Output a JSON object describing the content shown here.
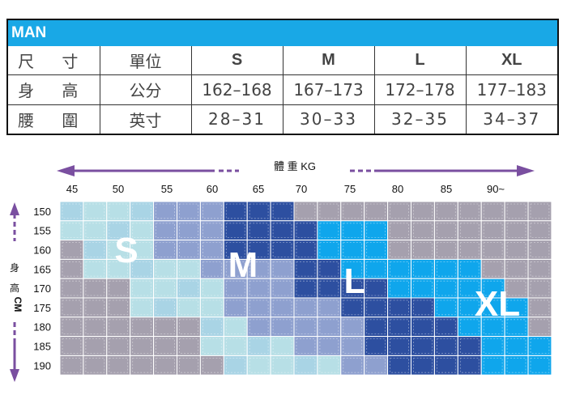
{
  "size_table": {
    "title": "MAN",
    "columns": [
      "尺 寸",
      "單位",
      "S",
      "M",
      "L",
      "XL"
    ],
    "rows": [
      {
        "label": "身 高",
        "unit": "公分",
        "values": [
          "162–168",
          "167–173",
          "172–178",
          "177–183"
        ]
      },
      {
        "label": "腰 圍",
        "unit": "英寸",
        "values": [
          "28–31",
          "30–33",
          "32–35",
          "34–37"
        ]
      }
    ]
  },
  "chart_data": {
    "type": "heatmap",
    "title": "體 重 KG",
    "x_ticks": [
      "45",
      "50",
      "55",
      "60",
      "65",
      "70",
      "75",
      "80",
      "85",
      "90~"
    ],
    "y_label_cn": "身 高",
    "y_label_unit": "CM",
    "y_ticks": [
      "150",
      "155",
      "160",
      "165",
      "170",
      "175",
      "180",
      "185",
      "190"
    ],
    "columns_count": 21,
    "legend": {
      "S": "#b7dfe6",
      "S2": "#a9d4e5",
      "M": "#8ea0cf",
      "L": "#2d4fa0",
      "XL": "#0fa6ec",
      "none": "#a5a0ae"
    },
    "size_labels": [
      "S",
      "M",
      "L",
      "XL"
    ],
    "arrow_color": "#7a4fa0",
    "grid": [
      "SSSSMMMLLLNNNNNNNNNNN",
      "SSSSMMMLLLLXXXNNNNNNN",
      "NSSSMMMLLLLXXXNNNNNNN",
      "NSSSSSMMMMLLXXXXXXNNN",
      "NNNSSSSMMMLLLLXXXXXNN",
      "NNNSSSSMMMMMLLLLXXXXN",
      "NNNNNNSSMMMMMLLLLXXXN",
      "NNNNNNSSSSMMMLLLLLXXX",
      "NNNNNNNSSSSSMMLLLLXXX"
    ]
  }
}
